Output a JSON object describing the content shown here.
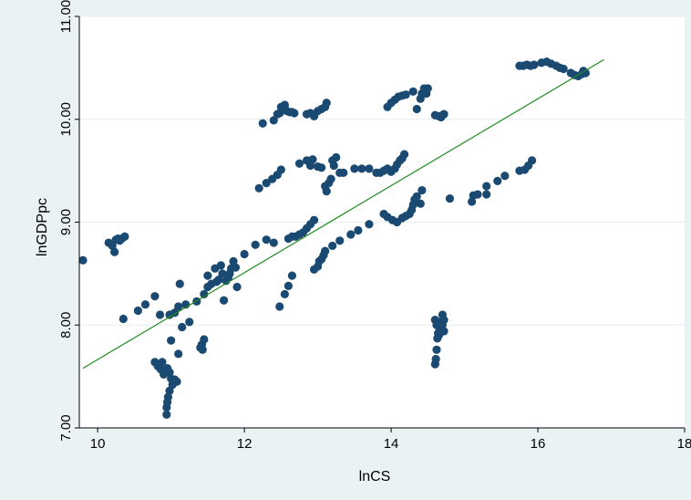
{
  "chart_data": {
    "type": "scatter",
    "xlabel": "lnCS",
    "ylabel": "lnGDPpc",
    "xlim": [
      9.75,
      18
    ],
    "ylim": [
      7.0,
      11.0
    ],
    "x_ticks": [
      "10",
      "12",
      "14",
      "16",
      "18"
    ],
    "y_ticks": [
      "7.00",
      "8.00",
      "9.00",
      "10.00",
      "11.00"
    ],
    "grid": true,
    "colors": {
      "background": "#eaf2f3",
      "plot": "#ffffff",
      "marker": "#1a4a72",
      "fit_line": "#1e8a1e",
      "grid": "#e6eef0"
    },
    "fit_line": {
      "x": [
        9.8,
        16.9
      ],
      "y": [
        7.58,
        10.58
      ]
    },
    "points": [
      [
        9.8,
        8.63
      ],
      [
        10.15,
        8.8
      ],
      [
        10.2,
        8.77
      ],
      [
        10.23,
        8.71
      ],
      [
        10.25,
        8.83
      ],
      [
        10.28,
        8.84
      ],
      [
        10.3,
        8.82
      ],
      [
        10.33,
        8.84
      ],
      [
        10.37,
        8.86
      ],
      [
        10.35,
        8.06
      ],
      [
        10.55,
        8.14
      ],
      [
        10.65,
        8.2
      ],
      [
        10.78,
        8.28
      ],
      [
        10.85,
        8.1
      ],
      [
        10.98,
        8.1
      ],
      [
        11.05,
        8.12
      ],
      [
        11.1,
        8.18
      ],
      [
        11.12,
        8.4
      ],
      [
        11.15,
        7.98
      ],
      [
        11.2,
        8.2
      ],
      [
        11.25,
        8.03
      ],
      [
        11.35,
        8.23
      ],
      [
        11.45,
        8.3
      ],
      [
        11.5,
        8.48
      ],
      [
        10.78,
        7.64
      ],
      [
        10.82,
        7.6
      ],
      [
        10.86,
        7.57
      ],
      [
        10.88,
        7.64
      ],
      [
        10.9,
        7.52
      ],
      [
        10.95,
        7.58
      ],
      [
        10.98,
        7.54
      ],
      [
        11.0,
        7.48
      ],
      [
        11.02,
        7.42
      ],
      [
        11.05,
        7.47
      ],
      [
        11.08,
        7.45
      ],
      [
        11.1,
        7.72
      ],
      [
        11.0,
        7.85
      ],
      [
        10.98,
        7.36
      ],
      [
        10.96,
        7.3
      ],
      [
        10.95,
        7.25
      ],
      [
        10.94,
        7.2
      ],
      [
        10.94,
        7.13
      ],
      [
        11.4,
        7.78
      ],
      [
        11.42,
        7.81
      ],
      [
        11.45,
        7.86
      ],
      [
        11.43,
        7.76
      ],
      [
        11.5,
        8.37
      ],
      [
        11.55,
        8.4
      ],
      [
        11.6,
        8.55
      ],
      [
        11.62,
        8.42
      ],
      [
        11.65,
        8.44
      ],
      [
        11.68,
        8.58
      ],
      [
        11.7,
        8.5
      ],
      [
        11.72,
        8.24
      ],
      [
        11.75,
        8.43
      ],
      [
        11.78,
        8.46
      ],
      [
        11.8,
        8.5
      ],
      [
        11.82,
        8.55
      ],
      [
        11.85,
        8.62
      ],
      [
        11.88,
        8.56
      ],
      [
        11.9,
        8.37
      ],
      [
        12.0,
        8.69
      ],
      [
        12.15,
        8.78
      ],
      [
        12.3,
        8.83
      ],
      [
        12.4,
        8.8
      ],
      [
        12.48,
        8.18
      ],
      [
        12.55,
        8.3
      ],
      [
        12.6,
        8.38
      ],
      [
        12.65,
        8.48
      ],
      [
        12.6,
        8.84
      ],
      [
        12.65,
        8.86
      ],
      [
        12.7,
        8.86
      ],
      [
        12.75,
        8.88
      ],
      [
        12.8,
        8.9
      ],
      [
        12.85,
        8.94
      ],
      [
        12.9,
        8.98
      ],
      [
        12.95,
        9.02
      ],
      [
        12.95,
        8.54
      ],
      [
        13.0,
        8.57
      ],
      [
        13.02,
        8.62
      ],
      [
        13.05,
        8.64
      ],
      [
        13.08,
        8.68
      ],
      [
        13.1,
        8.72
      ],
      [
        13.2,
        8.77
      ],
      [
        13.3,
        8.82
      ],
      [
        13.45,
        8.88
      ],
      [
        13.55,
        8.92
      ],
      [
        13.7,
        8.98
      ],
      [
        13.9,
        9.08
      ],
      [
        13.95,
        9.05
      ],
      [
        14.02,
        9.02
      ],
      [
        14.08,
        9.0
      ],
      [
        14.15,
        9.04
      ],
      [
        14.2,
        9.06
      ],
      [
        14.25,
        9.08
      ],
      [
        14.28,
        9.12
      ],
      [
        14.3,
        9.17
      ],
      [
        14.32,
        9.22
      ],
      [
        14.35,
        9.25
      ],
      [
        14.4,
        9.18
      ],
      [
        14.42,
        9.31
      ],
      [
        14.8,
        9.23
      ],
      [
        15.1,
        9.2
      ],
      [
        15.12,
        9.26
      ],
      [
        15.18,
        9.27
      ],
      [
        15.3,
        9.27
      ],
      [
        15.3,
        9.35
      ],
      [
        15.45,
        9.4
      ],
      [
        15.55,
        9.45
      ],
      [
        15.75,
        9.5
      ],
      [
        15.82,
        9.51
      ],
      [
        15.87,
        9.55
      ],
      [
        15.92,
        9.6
      ],
      [
        12.2,
        9.33
      ],
      [
        12.3,
        9.38
      ],
      [
        12.38,
        9.42
      ],
      [
        12.45,
        9.46
      ],
      [
        12.5,
        9.51
      ],
      [
        12.75,
        9.57
      ],
      [
        12.85,
        9.6
      ],
      [
        12.9,
        9.55
      ],
      [
        12.93,
        9.61
      ],
      [
        13.0,
        9.54
      ],
      [
        13.05,
        9.53
      ],
      [
        13.1,
        9.35
      ],
      [
        13.12,
        9.3
      ],
      [
        13.15,
        9.38
      ],
      [
        13.18,
        9.42
      ],
      [
        13.2,
        9.6
      ],
      [
        13.22,
        9.55
      ],
      [
        13.25,
        9.63
      ],
      [
        13.3,
        9.48
      ],
      [
        13.35,
        9.48
      ],
      [
        13.5,
        9.52
      ],
      [
        13.6,
        9.52
      ],
      [
        13.7,
        9.52
      ],
      [
        13.8,
        9.48
      ],
      [
        13.85,
        9.48
      ],
      [
        13.9,
        9.5
      ],
      [
        13.95,
        9.52
      ],
      [
        14.0,
        9.49
      ],
      [
        14.05,
        9.52
      ],
      [
        14.08,
        9.56
      ],
      [
        14.12,
        9.6
      ],
      [
        14.15,
        9.62
      ],
      [
        14.18,
        9.66
      ],
      [
        12.25,
        9.96
      ],
      [
        12.4,
        9.99
      ],
      [
        12.45,
        10.05
      ],
      [
        12.48,
        10.06
      ],
      [
        12.5,
        10.12
      ],
      [
        12.52,
        10.1
      ],
      [
        12.55,
        10.14
      ],
      [
        12.58,
        10.08
      ],
      [
        12.62,
        10.07
      ],
      [
        12.65,
        10.07
      ],
      [
        12.68,
        10.06
      ],
      [
        12.85,
        10.05
      ],
      [
        12.9,
        10.06
      ],
      [
        12.95,
        10.03
      ],
      [
        13.0,
        10.08
      ],
      [
        13.05,
        10.1
      ],
      [
        13.1,
        10.12
      ],
      [
        13.12,
        10.16
      ],
      [
        13.95,
        10.12
      ],
      [
        14.0,
        10.16
      ],
      [
        14.05,
        10.19
      ],
      [
        14.1,
        10.22
      ],
      [
        14.15,
        10.23
      ],
      [
        14.2,
        10.24
      ],
      [
        14.3,
        10.27
      ],
      [
        14.35,
        10.1
      ],
      [
        14.4,
        10.2
      ],
      [
        14.42,
        10.25
      ],
      [
        14.45,
        10.3
      ],
      [
        14.48,
        10.25
      ],
      [
        14.5,
        10.3
      ],
      [
        14.6,
        10.04
      ],
      [
        14.65,
        10.03
      ],
      [
        14.68,
        10.02
      ],
      [
        14.7,
        10.04
      ],
      [
        14.72,
        10.05
      ],
      [
        14.6,
        7.62
      ],
      [
        14.61,
        7.67
      ],
      [
        14.62,
        7.76
      ],
      [
        14.63,
        7.87
      ],
      [
        14.64,
        7.92
      ],
      [
        14.65,
        7.9
      ],
      [
        14.66,
        7.95
      ],
      [
        14.6,
        8.05
      ],
      [
        14.62,
        8.0
      ],
      [
        14.64,
        8.03
      ],
      [
        14.66,
        8.02
      ],
      [
        14.68,
        7.98
      ],
      [
        14.7,
        8.0
      ],
      [
        14.72,
        8.05
      ],
      [
        14.7,
        8.1
      ],
      [
        14.72,
        7.94
      ],
      [
        15.75,
        10.52
      ],
      [
        15.8,
        10.52
      ],
      [
        15.85,
        10.53
      ],
      [
        15.9,
        10.52
      ],
      [
        15.95,
        10.53
      ],
      [
        16.05,
        10.55
      ],
      [
        16.12,
        10.56
      ],
      [
        16.18,
        10.54
      ],
      [
        16.25,
        10.52
      ],
      [
        16.3,
        10.5
      ],
      [
        16.35,
        10.49
      ],
      [
        16.45,
        10.45
      ],
      [
        16.5,
        10.43
      ],
      [
        16.55,
        10.42
      ],
      [
        16.6,
        10.44
      ],
      [
        16.62,
        10.47
      ],
      [
        16.65,
        10.45
      ]
    ]
  }
}
